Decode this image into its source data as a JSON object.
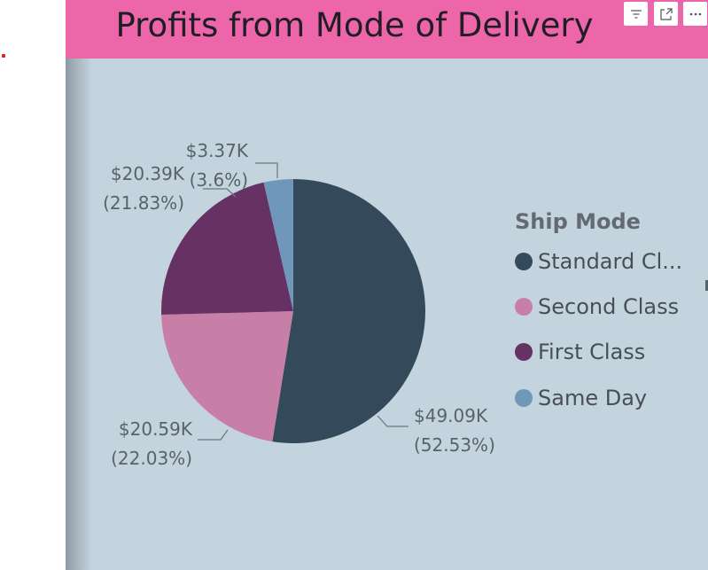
{
  "chart_data": {
    "type": "pie",
    "title": "Profits from Mode of Delivery",
    "legend_title": "Ship Mode",
    "legend_position": "right",
    "slices": [
      {
        "name": "Standard Class",
        "legend_label": "Standard Cl...",
        "value": 49.09,
        "value_label": "$49.09K",
        "percent_label": "(52.53%)",
        "color": "#344a5a"
      },
      {
        "name": "Second Class",
        "legend_label": "Second Class",
        "value": 20.59,
        "value_label": "$20.59K",
        "percent_label": "(22.03%)",
        "color": "#c77fa8"
      },
      {
        "name": "First Class",
        "legend_label": "First Class",
        "value": 20.39,
        "value_label": "$20.39K",
        "percent_label": "(21.83%)",
        "color": "#653263"
      },
      {
        "name": "Same Day",
        "legend_label": "Same Day",
        "value": 3.37,
        "value_label": "$3.37K",
        "percent_label": "(3.6%)",
        "color": "#6f97b9"
      }
    ]
  },
  "header": {
    "title_bg": "#ee66aa",
    "icons": [
      "filter-icon",
      "focus-mode-icon",
      "more-options-icon"
    ]
  }
}
